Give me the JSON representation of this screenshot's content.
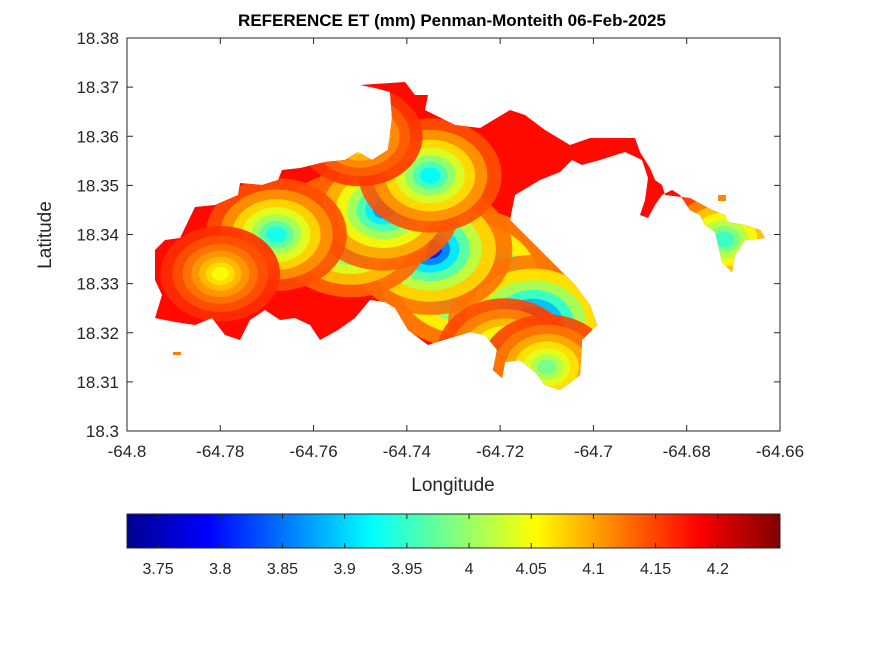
{
  "chart_data": {
    "type": "heatmap",
    "title": "REFERENCE ET (mm) Penman-Monteith 06-Feb-2025",
    "xlabel": "Longitude",
    "ylabel": "Latitude",
    "xlim": [
      -64.8,
      -64.66
    ],
    "ylim": [
      18.3,
      18.38
    ],
    "x_ticks": [
      -64.8,
      -64.78,
      -64.76,
      -64.74,
      -64.72,
      -64.7,
      -64.68,
      -64.66
    ],
    "y_ticks": [
      18.3,
      18.31,
      18.32,
      18.33,
      18.34,
      18.35,
      18.36,
      18.37,
      18.38
    ],
    "x_tick_labels": [
      "-64.8",
      "-64.78",
      "-64.76",
      "-64.74",
      "-64.72",
      "-64.7",
      "-64.68",
      "-64.66"
    ],
    "y_tick_labels": [
      "18.3",
      "18.31",
      "18.32",
      "18.33",
      "18.34",
      "18.35",
      "18.36",
      "18.37",
      "18.38"
    ],
    "colormap": "jet",
    "colorbar": {
      "orientation": "horizontal",
      "placement": "bottom",
      "clim": [
        3.725,
        4.25
      ],
      "ticks": [
        3.75,
        3.8,
        3.85,
        3.9,
        3.95,
        4,
        4.05,
        4.1,
        4.15,
        4.2
      ],
      "tick_labels": [
        "3.75",
        "3.8",
        "3.85",
        "3.9",
        "3.95",
        "4",
        "4.05",
        "4.1",
        "4.15",
        "4.2"
      ]
    },
    "grid": false,
    "field": {
      "background_value": 4.18,
      "hotspots": [
        {
          "lon": -64.727,
          "lat": 18.331,
          "value": 3.74
        },
        {
          "lon": -64.713,
          "lat": 18.322,
          "value": 3.77
        },
        {
          "lon": -64.735,
          "lat": 18.337,
          "value": 3.8
        },
        {
          "lon": -64.752,
          "lat": 18.34,
          "value": 3.84
        },
        {
          "lon": -64.745,
          "lat": 18.345,
          "value": 3.87
        },
        {
          "lon": -64.735,
          "lat": 18.352,
          "value": 3.92
        },
        {
          "lon": -64.768,
          "lat": 18.34,
          "value": 3.93
        },
        {
          "lon": -64.719,
          "lat": 18.316,
          "value": 3.96
        },
        {
          "lon": -64.78,
          "lat": 18.332,
          "value": 4.05
        },
        {
          "lon": -64.71,
          "lat": 18.313,
          "value": 3.98
        },
        {
          "lon": -64.672,
          "lat": 18.339,
          "value": 3.95
        },
        {
          "lon": -64.75,
          "lat": 18.36,
          "value": 4.02
        }
      ]
    }
  }
}
